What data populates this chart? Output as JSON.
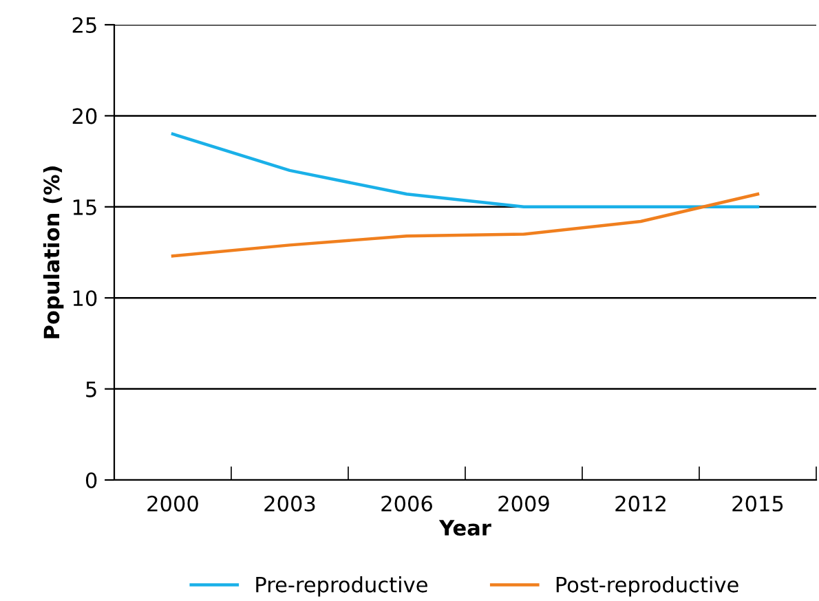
{
  "chart_data": {
    "type": "line",
    "xlabel": "Year",
    "ylabel": "Population (%)",
    "categories": [
      "2000",
      "2003",
      "2006",
      "2009",
      "2012",
      "2015"
    ],
    "series": [
      {
        "name": "Pre-reproductive",
        "color": "#1ab0e8",
        "values": [
          19.0,
          17.0,
          15.7,
          15.0,
          15.0,
          15.0
        ]
      },
      {
        "name": "Post-reproductive",
        "color": "#f07f1e",
        "values": [
          12.3,
          12.9,
          13.4,
          13.5,
          14.2,
          15.7
        ]
      }
    ],
    "ylim": [
      0,
      25
    ],
    "yticks": [
      0,
      5,
      10,
      15,
      20,
      25
    ],
    "grid": "y",
    "legend": "bottom",
    "marker": "none",
    "line_style": "solid"
  }
}
